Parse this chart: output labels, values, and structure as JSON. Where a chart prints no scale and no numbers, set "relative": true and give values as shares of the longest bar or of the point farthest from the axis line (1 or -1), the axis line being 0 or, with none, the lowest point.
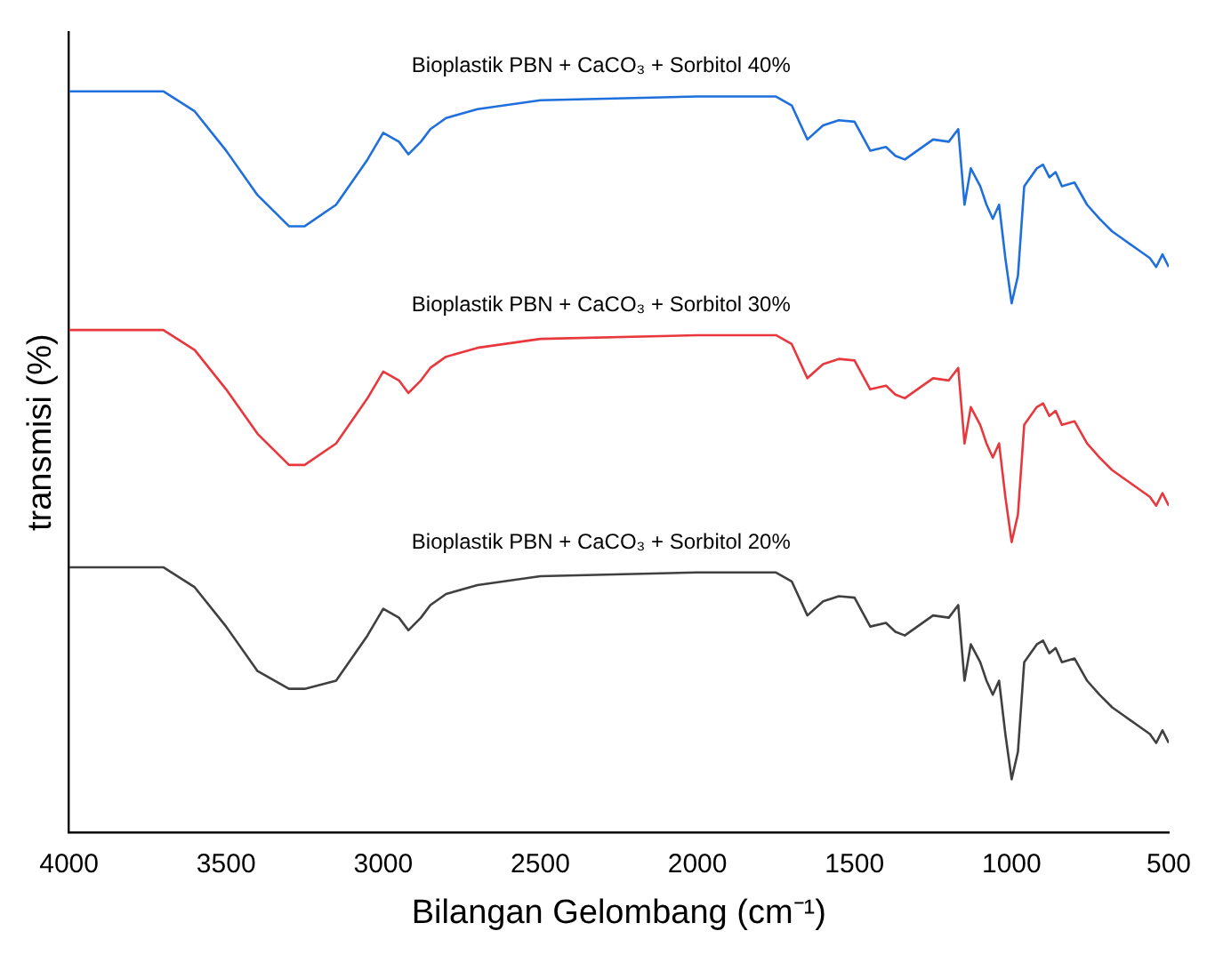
{
  "chart_data": {
    "type": "line",
    "relative": true,
    "xlabel": "Bilangan Gelombang (cm⁻¹)",
    "ylabel": "transmisi (%)",
    "xlim": [
      4000,
      500
    ],
    "xticks": [
      4000,
      3500,
      3000,
      2500,
      2000,
      1500,
      1000,
      500
    ],
    "grid": false,
    "legend": false,
    "tick_labels": "x",
    "marker": "none",
    "line_style": "solid",
    "x": [
      4000,
      3700,
      3600,
      3500,
      3400,
      3300,
      3250,
      3150,
      3050,
      3000,
      2950,
      2920,
      2880,
      2850,
      2800,
      2700,
      2500,
      2000,
      1750,
      1700,
      1650,
      1600,
      1550,
      1500,
      1450,
      1400,
      1370,
      1340,
      1300,
      1250,
      1200,
      1170,
      1150,
      1130,
      1100,
      1080,
      1060,
      1040,
      1020,
      1000,
      980,
      960,
      940,
      920,
      900,
      880,
      860,
      840,
      800,
      760,
      720,
      680,
      640,
      600,
      560,
      540,
      520,
      500
    ],
    "series": [
      {
        "name": "Bioplastik PBN + CaCO₃ + Sorbitol 40%",
        "color": "#1f6fdc",
        "values": [
          1.0,
          1.0,
          0.973,
          0.92,
          0.86,
          0.818,
          0.818,
          0.847,
          0.908,
          0.944,
          0.932,
          0.915,
          0.932,
          0.949,
          0.964,
          0.976,
          0.988,
          0.993,
          0.993,
          0.981,
          0.935,
          0.954,
          0.961,
          0.959,
          0.92,
          0.925,
          0.913,
          0.908,
          0.92,
          0.935,
          0.932,
          0.949,
          0.847,
          0.896,
          0.872,
          0.847,
          0.828,
          0.847,
          0.775,
          0.714,
          0.751,
          0.872,
          0.884,
          0.896,
          0.901,
          0.884,
          0.891,
          0.872,
          0.877,
          0.847,
          0.828,
          0.811,
          0.799,
          0.787,
          0.775,
          0.763,
          0.78,
          0.763
        ]
      },
      {
        "name": "Bioplastik PBN + CaCO₃ + Sorbitol 30%",
        "color": "#e8383d",
        "values": [
          0.678,
          0.678,
          0.651,
          0.598,
          0.538,
          0.496,
          0.496,
          0.525,
          0.586,
          0.622,
          0.61,
          0.593,
          0.61,
          0.627,
          0.642,
          0.654,
          0.666,
          0.671,
          0.671,
          0.659,
          0.613,
          0.632,
          0.639,
          0.637,
          0.598,
          0.603,
          0.591,
          0.586,
          0.598,
          0.613,
          0.61,
          0.627,
          0.525,
          0.574,
          0.55,
          0.525,
          0.506,
          0.525,
          0.453,
          0.392,
          0.429,
          0.55,
          0.562,
          0.574,
          0.579,
          0.562,
          0.569,
          0.55,
          0.555,
          0.525,
          0.506,
          0.489,
          0.477,
          0.465,
          0.453,
          0.441,
          0.458,
          0.441
        ]
      },
      {
        "name": "Bioplastik PBN + CaCO₃ + Sorbitol 20%",
        "color": "#404040",
        "values": [
          0.358,
          0.358,
          0.331,
          0.278,
          0.218,
          0.194,
          0.194,
          0.205,
          0.266,
          0.302,
          0.29,
          0.273,
          0.29,
          0.307,
          0.322,
          0.334,
          0.346,
          0.351,
          0.351,
          0.339,
          0.293,
          0.312,
          0.319,
          0.317,
          0.278,
          0.283,
          0.271,
          0.266,
          0.278,
          0.293,
          0.29,
          0.307,
          0.205,
          0.254,
          0.23,
          0.205,
          0.186,
          0.205,
          0.133,
          0.072,
          0.109,
          0.23,
          0.242,
          0.254,
          0.259,
          0.242,
          0.249,
          0.23,
          0.235,
          0.205,
          0.186,
          0.169,
          0.157,
          0.145,
          0.133,
          0.121,
          0.138,
          0.121
        ]
      }
    ]
  }
}
